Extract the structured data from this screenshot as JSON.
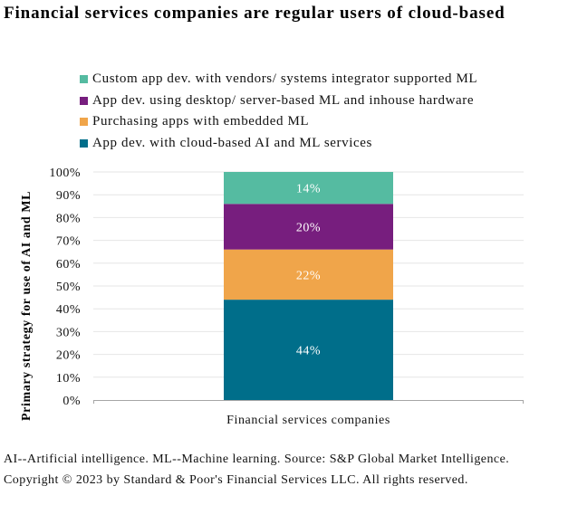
{
  "chart_data": {
    "type": "bar",
    "stacked": true,
    "title": "Financial services companies are regular users of cloud-based",
    "xlabel": "",
    "ylabel": "Primary strategy for use of AI and ML",
    "categories": [
      "Financial services companies"
    ],
    "ylim": [
      0,
      100
    ],
    "yticks": [
      "0%",
      "10%",
      "20%",
      "30%",
      "40%",
      "50%",
      "60%",
      "70%",
      "80%",
      "90%",
      "100%"
    ],
    "grid": true,
    "legend_position": "top",
    "series": [
      {
        "name": "App dev. with cloud-based AI and ML services",
        "values": [
          44
        ],
        "label": "44%",
        "color": "#006E8A"
      },
      {
        "name": "Purchasing apps with embedded ML",
        "values": [
          22
        ],
        "label": "22%",
        "color": "#F0A54A"
      },
      {
        "name": "App dev. using desktop/server-based ML and inhouse hardware",
        "values": [
          20
        ],
        "label": "20%",
        "color": "#771E7E"
      },
      {
        "name": "Custom app dev. with vendors/systems integrator supported ML",
        "values": [
          14
        ],
        "label": "14%",
        "color": "#55BBA1"
      }
    ]
  },
  "legend": {
    "items": [
      {
        "label": "Custom app dev. with vendors/ systems integrator supported ML",
        "color": "#55BBA1"
      },
      {
        "label": "App dev. using desktop/ server-based ML and inhouse hardware",
        "color": "#771E7E"
      },
      {
        "label": "Purchasing apps with embedded ML",
        "color": "#F0A54A"
      },
      {
        "label": "App dev. with cloud-based AI and ML services",
        "color": "#006E8A"
      }
    ]
  },
  "footnotes": {
    "line1": "AI--Artificial intelligence. ML--Machine learning. Source: S&P Global Market Intelligence.",
    "line2": "Copyright © 2023 by Standard & Poor's Financial Services LLC. All rights reserved."
  }
}
